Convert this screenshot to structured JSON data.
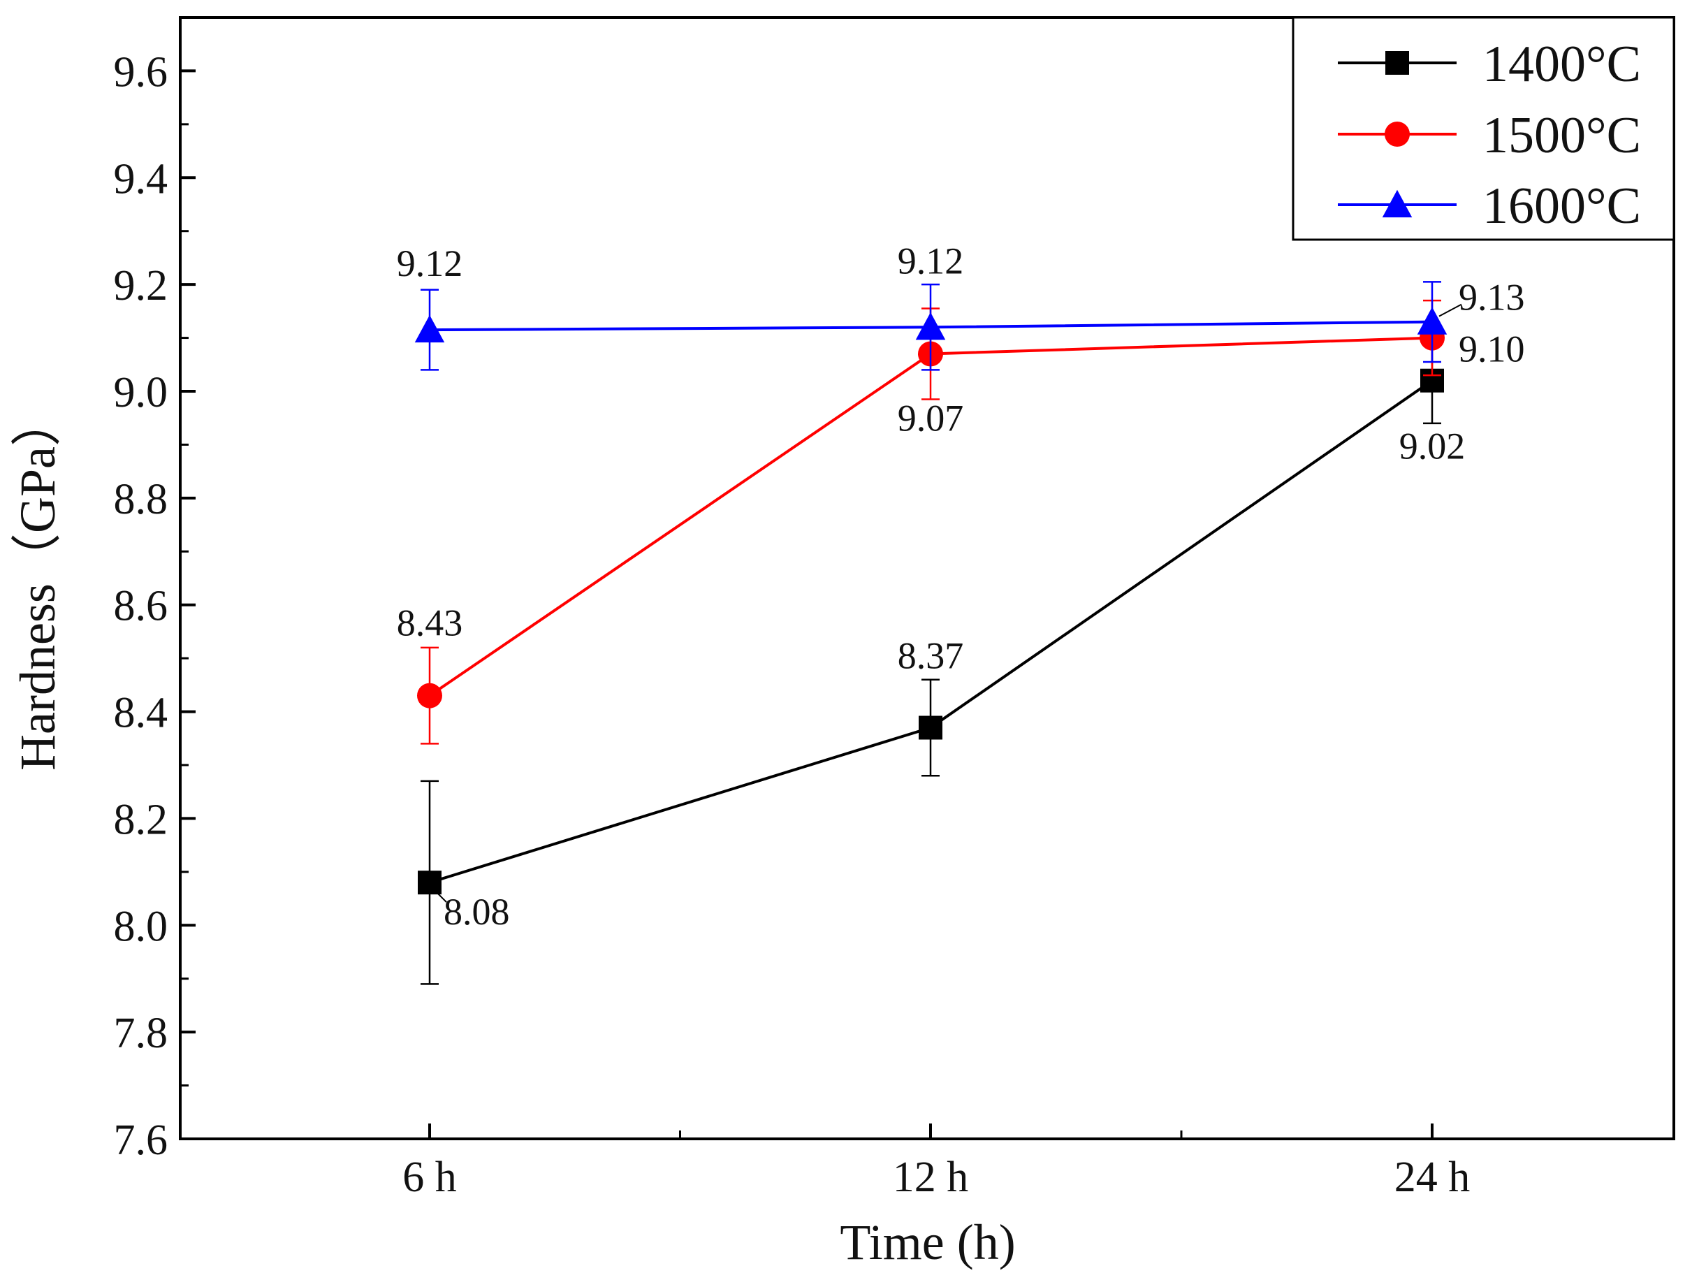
{
  "chart_data": {
    "type": "line",
    "title": "",
    "xlabel": "Time (h)",
    "ylabel": "Hardness（GPa）",
    "categories": [
      "6 h",
      "12 h",
      "24 h"
    ],
    "ylim": [
      7.6,
      9.7
    ],
    "yticks": [
      7.6,
      7.8,
      8.0,
      8.2,
      8.4,
      8.6,
      8.8,
      9.0,
      9.2,
      9.4,
      9.6
    ],
    "ytick_labels": [
      "7.6",
      "7.8",
      "8.0",
      "8.2",
      "8.4",
      "8.6",
      "8.8",
      "9.0",
      "9.2",
      "9.4",
      "9.6"
    ],
    "grid": false,
    "legend_position": "top-right",
    "series": [
      {
        "name": "1400°C",
        "color": "#000000",
        "marker": "square",
        "values": [
          8.08,
          8.37,
          9.02
        ],
        "errors": [
          0.19,
          0.09,
          0.08
        ],
        "labels": [
          "8.08",
          "8.37",
          "9.02"
        ]
      },
      {
        "name": "1500°C",
        "color": "#ff0000",
        "marker": "circle",
        "values": [
          8.43,
          9.07,
          9.1
        ],
        "errors": [
          0.09,
          0.085,
          0.07
        ],
        "labels": [
          "8.43",
          "9.07",
          "9.10"
        ]
      },
      {
        "name": "1600°C",
        "color": "#0000ff",
        "marker": "triangle",
        "values": [
          9.115,
          9.12,
          9.13
        ],
        "errors": [
          0.075,
          0.08,
          0.075
        ],
        "labels": [
          "9.12",
          "9.12",
          "9.13"
        ]
      }
    ]
  }
}
